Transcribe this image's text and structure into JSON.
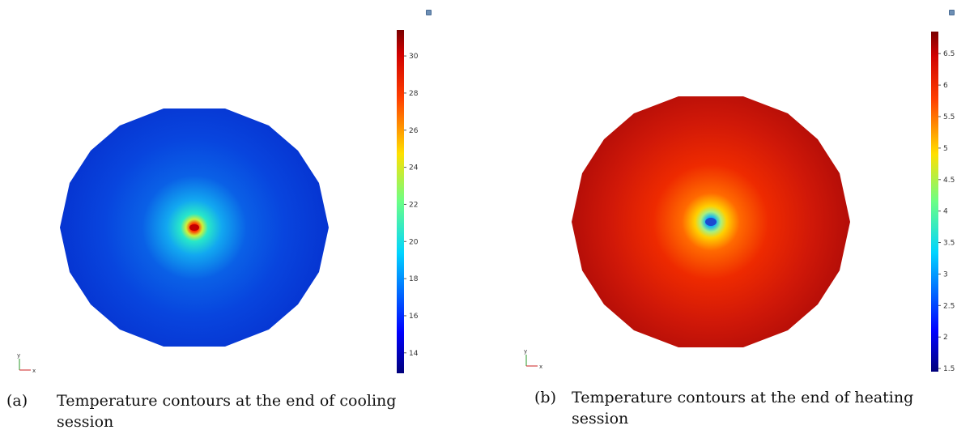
{
  "figures": [
    {
      "id": "a",
      "caption_letter": "(a)",
      "caption_text": "Temperature contours at the end of cooling session",
      "colorbar_ticks": [
        "14",
        "16",
        "18",
        "20",
        "22",
        "24",
        "26",
        "28",
        "30"
      ],
      "colorbar_range": [
        12.9,
        31.4
      ],
      "surface_base": 13.8,
      "center_value": 31,
      "axis_y": "y",
      "axis_x": "x"
    },
    {
      "id": "b",
      "caption_letter": "(b)",
      "caption_text": "Temperature contours at the end of heating session",
      "colorbar_ticks": [
        "1.5",
        "2",
        "2.5",
        "3",
        "3.5",
        "4",
        "4.5",
        "5",
        "5.5",
        "6",
        "6.5"
      ],
      "colorbar_range": [
        1.45,
        6.85
      ],
      "surface_base": 6.6,
      "center_value": 1.8,
      "axis_y": "y",
      "axis_x": "x"
    }
  ],
  "colormap": "rainbow"
}
